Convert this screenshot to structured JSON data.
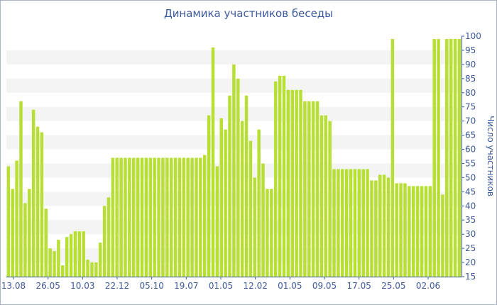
{
  "chart_data": {
    "type": "bar",
    "title": "Динамика участников беседы",
    "ylabel": "Число участников",
    "xlabel": "",
    "ylim": [
      15,
      100
    ],
    "yticks": [
      15,
      20,
      25,
      30,
      35,
      40,
      45,
      50,
      55,
      60,
      65,
      70,
      75,
      80,
      85,
      90,
      95,
      100
    ],
    "xtick_labels": [
      "13.08",
      "26.05",
      "10.03",
      "22.12",
      "05.10",
      "19.07",
      "01.05",
      "12.02",
      "01.05",
      "09.05",
      "17.05",
      "25.05",
      "02.06"
    ],
    "bar_color": "#b7df34",
    "grid": "horizontal alternating bands",
    "values": [
      54,
      46,
      56,
      77,
      41,
      46,
      74,
      68,
      66,
      39,
      25,
      24,
      28,
      19,
      29,
      30,
      31,
      31,
      31,
      21,
      20,
      20,
      27,
      40,
      43,
      57,
      57,
      57,
      57,
      57,
      57,
      57,
      57,
      57,
      57,
      57,
      57,
      57,
      57,
      57,
      57,
      57,
      57,
      57,
      57,
      57,
      57,
      58,
      72,
      96,
      54,
      71,
      67,
      79,
      90,
      85,
      70,
      79,
      63,
      50,
      67,
      55,
      46,
      46,
      84,
      86,
      86,
      81,
      81,
      81,
      81,
      77,
      77,
      77,
      77,
      72,
      72,
      70,
      53,
      53,
      53,
      53,
      53,
      53,
      53,
      53,
      53,
      49,
      49,
      51,
      51,
      50,
      99,
      48,
      48,
      48,
      47,
      47,
      47,
      47,
      47,
      47,
      99,
      99,
      44,
      99,
      99,
      99,
      99
    ]
  }
}
